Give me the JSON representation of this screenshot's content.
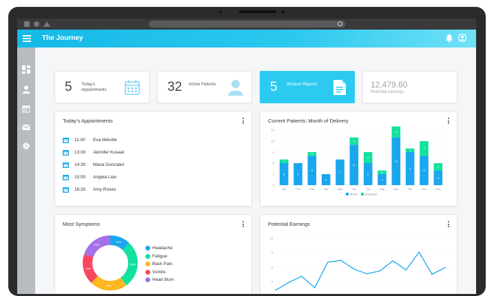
{
  "app": {
    "title": "The Journey"
  },
  "stats": [
    {
      "number": "5",
      "label": "Today's Appointments",
      "icon": "calendar-icon"
    },
    {
      "number": "32",
      "label": "Active Patients",
      "icon": "user-icon"
    },
    {
      "number": "5",
      "label": "Wisdom Reports",
      "icon": "document-icon"
    }
  ],
  "earnings": {
    "value": "12,479.60",
    "label": "Potential earnings"
  },
  "appointments": {
    "title": "Today's Appointments",
    "items": [
      {
        "time": "11:00",
        "name": "Eva Melville"
      },
      {
        "time": "13:30",
        "name": "Jennifer Kusaal"
      },
      {
        "time": "14:30",
        "name": "Maria Gonzalez"
      },
      {
        "time": "15:00",
        "name": "Angela Lian"
      },
      {
        "time": "16:30",
        "name": "Amy Roses"
      }
    ]
  },
  "colors": {
    "accent": "#2ccaf1",
    "blue": "#1aa7ee",
    "green": "#13e1a0"
  },
  "chart_data": [
    {
      "type": "bar",
      "title": "Current Patients: Month of Delivery",
      "categories": [
        "Jan",
        "Feb",
        "Mar",
        "Apr",
        "May",
        "Jun",
        "Jul",
        "Aug",
        "Sep",
        "Oct",
        "Nov",
        "Dec"
      ],
      "series": [
        {
          "name": "Month",
          "color": "#1aa7ee",
          "values": [
            6,
            6,
            8,
            3,
            7,
            11,
            6,
            3,
            13,
            9,
            8,
            4
          ]
        },
        {
          "name": "Expected",
          "color": "#13e1a0",
          "values": [
            1,
            0,
            1,
            0,
            0,
            2,
            3,
            1,
            3,
            1,
            4,
            2
          ]
        }
      ],
      "stacked": true,
      "ylim": [
        0,
        15
      ],
      "yticks": [
        0,
        3,
        6,
        9,
        12,
        15
      ],
      "legend": "bottom",
      "bar_labels": [
        [
          "6",
          "6",
          "8",
          "3",
          "7",
          "11",
          "6",
          "3",
          "13",
          "9",
          "8",
          "4"
        ],
        [
          "1",
          "",
          "1",
          "",
          "",
          "2",
          "3",
          "1",
          "3",
          "1",
          "4",
          "2"
        ]
      ]
    },
    {
      "type": "pie",
      "title": "Most Symptoms",
      "donut": true,
      "categories": [
        "Headache",
        "Fatigue",
        "Back Pain",
        "Vomits",
        "Heart Burn"
      ],
      "values": [
        12,
        28,
        22,
        18,
        20
      ],
      "colors": [
        "#1aa7ee",
        "#13e1a0",
        "#ffb822",
        "#f8465f",
        "#a371e8"
      ],
      "slice_labels": [
        "12%",
        "28%",
        "22%",
        "18%",
        "20%"
      ],
      "legend": "right"
    },
    {
      "type": "line",
      "title": "Potential Earnings",
      "x": [
        1,
        2,
        3,
        4,
        5,
        6,
        7,
        8,
        9,
        10,
        11,
        12,
        13,
        14
      ],
      "values": [
        1.2,
        2.8,
        4.1,
        1.7,
        7.0,
        7.4,
        5.6,
        4.6,
        5.2,
        7.3,
        5.4,
        9.1,
        4.5,
        5.9
      ],
      "ylim": [
        0,
        12
      ],
      "yticks": [
        0,
        3,
        6,
        9,
        12
      ],
      "color": "#1aa7ee"
    }
  ]
}
